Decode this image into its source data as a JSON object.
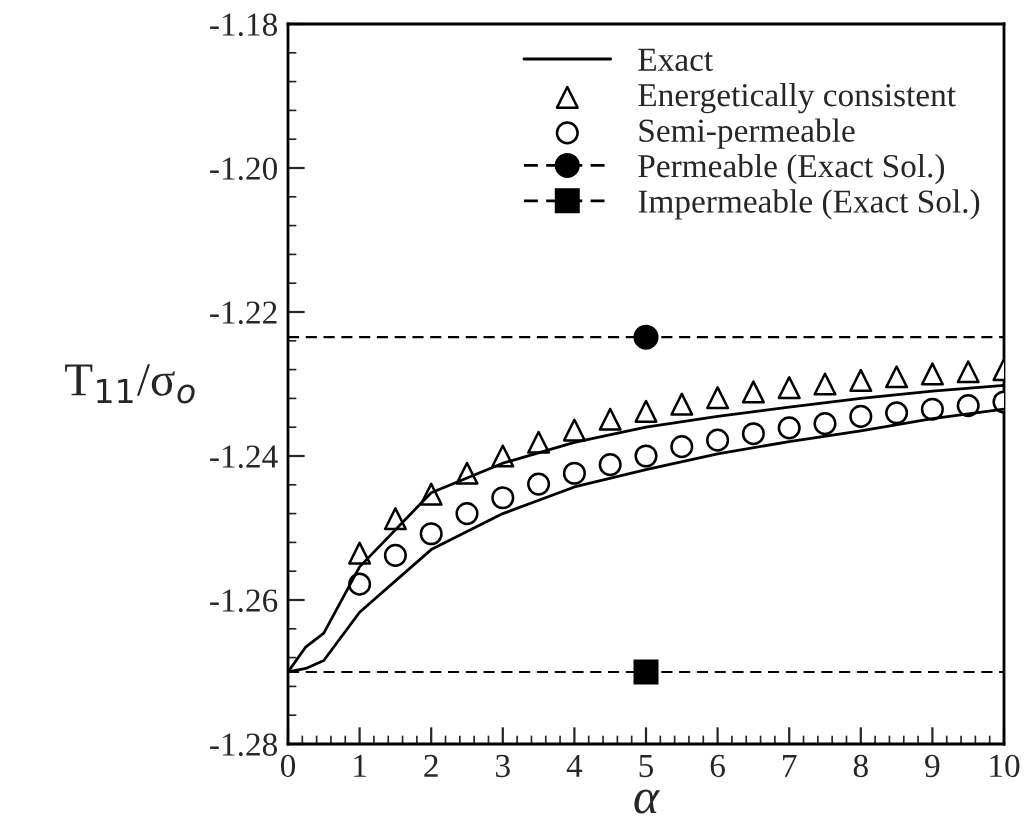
{
  "chart_data": {
    "type": "line",
    "xlabel": "α",
    "ylabel": "T$_{11}$/σ$_{o}$",
    "xlim": [
      0,
      10
    ],
    "xticks": [
      0,
      1,
      2,
      3,
      4,
      5,
      6,
      7,
      8,
      9,
      10
    ],
    "ylim": [
      -1.28,
      -1.18
    ],
    "yticks": [
      {
        "value": -1.28,
        "label": "-1.28"
      },
      {
        "value": -1.26,
        "label": "-1.26"
      },
      {
        "value": -1.24,
        "label": "-1.24"
      },
      {
        "value": -1.22,
        "label": "-1.22"
      },
      {
        "value": -1.2,
        "label": "-1.20"
      },
      {
        "value": -1.18,
        "label": "-1.18"
      }
    ],
    "grid": false,
    "legend": "top right",
    "ref_lines": [
      {
        "axis": "y",
        "value": -1.2235,
        "line_style": "dashed",
        "color": "#000000"
      },
      {
        "axis": "y",
        "value": -1.27,
        "line_style": "dashed",
        "color": "#000000"
      }
    ],
    "series": [
      {
        "name": "Exact",
        "color": "#000000",
        "marker": "none",
        "line_style": "solid",
        "x": [
          0,
          0.25,
          0.5,
          1,
          2,
          3,
          4,
          5,
          6,
          7,
          8,
          9,
          10
        ],
        "values": [
          -1.27,
          -1.2665,
          -1.2646,
          -1.2554,
          -1.2451,
          -1.241,
          -1.2381,
          -1.236,
          -1.2345,
          -1.2332,
          -1.232,
          -1.231,
          -1.2302
        ]
      },
      {
        "color": "#000000",
        "marker": "none",
        "line_style": "solid",
        "x": [
          0,
          0.25,
          0.5,
          1,
          2,
          3,
          4,
          5,
          6,
          7,
          8,
          9,
          10
        ],
        "values": [
          -1.27,
          -1.2695,
          -1.2684,
          -1.2617,
          -1.253,
          -1.248,
          -1.2443,
          -1.2419,
          -1.2397,
          -1.238,
          -1.2365,
          -1.2348,
          -1.2335
        ]
      },
      {
        "name": "Energetically consistent",
        "type": "scatter",
        "color": "#000000",
        "marker": "triangle",
        "x": [
          1,
          1.5,
          2,
          2.5,
          3,
          3.5,
          4,
          4.5,
          5,
          5.5,
          6,
          6.5,
          7,
          7.5,
          8,
          8.5,
          9,
          9.5,
          10
        ],
        "values": [
          -1.2535,
          -1.2487,
          -1.2453,
          -1.2424,
          -1.24,
          -1.2381,
          -1.2364,
          -1.2349,
          -1.2338,
          -1.2328,
          -1.2319,
          -1.2311,
          -1.2305,
          -1.23,
          -1.2295,
          -1.229,
          -1.2286,
          -1.2283,
          -1.228
        ]
      },
      {
        "name": "Semi-permeable",
        "type": "scatter",
        "color": "#000000",
        "marker": "circle",
        "x": [
          1,
          1.5,
          2,
          2.5,
          3,
          3.5,
          4,
          4.5,
          5,
          5.5,
          6,
          6.5,
          7,
          7.5,
          8,
          8.5,
          9,
          9.5,
          10
        ],
        "values": [
          -1.2578,
          -1.2538,
          -1.2508,
          -1.248,
          -1.2458,
          -1.2439,
          -1.2424,
          -1.2412,
          -1.24,
          -1.2387,
          -1.2378,
          -1.2369,
          -1.2361,
          -1.2355,
          -1.2345,
          -1.234,
          -1.2335,
          -1.233,
          -1.2325
        ]
      },
      {
        "name": "Permeable (Exact Sol.)",
        "color": "#000000",
        "marker": "circle",
        "line_style": "dashed",
        "x": [
          5
        ],
        "values": [
          -1.2235
        ]
      },
      {
        "name": "Impermeable (Exact Sol.)",
        "color": "#000000",
        "marker": "square",
        "line_style": "dashed",
        "x": [
          5
        ],
        "values": [
          -1.27
        ]
      }
    ]
  }
}
